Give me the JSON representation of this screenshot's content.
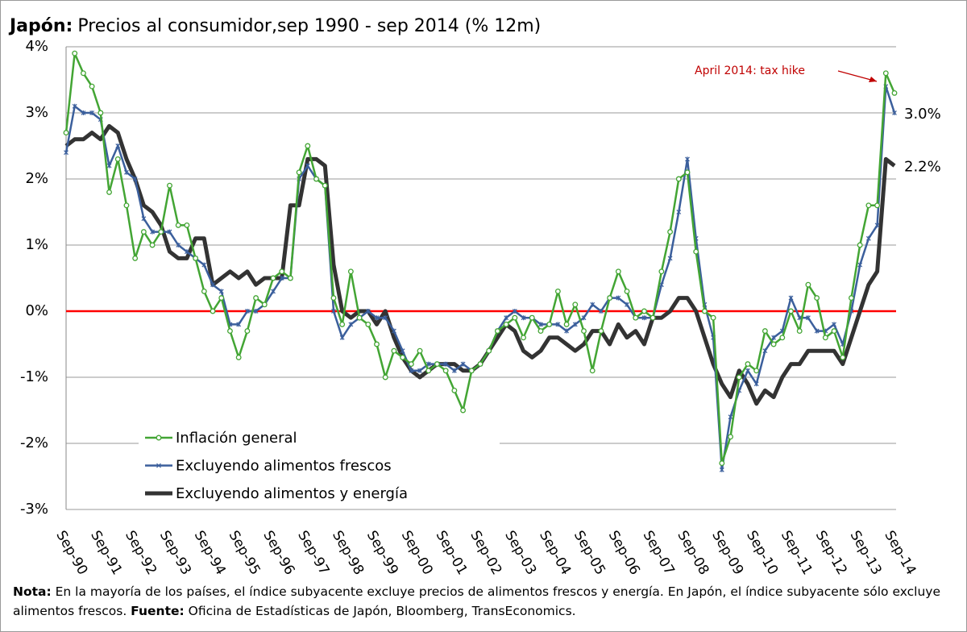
{
  "chart_data": {
    "type": "line",
    "title_prefix": "Japón:",
    "title": "Precios al consumidor,sep 1990 - sep 2014 (% 12m)",
    "categories": [
      "Sep-90",
      null,
      null,
      null,
      "Sep-91",
      null,
      null,
      null,
      "Sep-92",
      null,
      null,
      null,
      "Sep-93",
      null,
      null,
      null,
      "Sep-94",
      null,
      null,
      null,
      "Sep-95",
      null,
      null,
      null,
      "Sep-96",
      null,
      null,
      null,
      "Sep-97",
      null,
      null,
      null,
      "Sep-98",
      null,
      null,
      null,
      "Sep-99",
      null,
      null,
      null,
      "Sep-00",
      null,
      null,
      null,
      "Sep-01",
      null,
      null,
      null,
      "Sep-02",
      null,
      null,
      null,
      "Sep-03",
      null,
      null,
      null,
      "Sep-04",
      null,
      null,
      null,
      "Sep-05",
      null,
      null,
      null,
      "Sep-06",
      null,
      null,
      null,
      "Sep-07",
      null,
      null,
      null,
      "Sep-08",
      null,
      null,
      null,
      "Sep-09",
      null,
      null,
      null,
      "Sep-10",
      null,
      null,
      null,
      "Sep-11",
      null,
      null,
      null,
      "Sep-12",
      null,
      null,
      null,
      "Sep-13",
      null,
      null,
      null,
      "Sep-14"
    ],
    "series": [
      {
        "name": "Inflación general",
        "color": "#43a534",
        "marker": "circle",
        "values": [
          2.7,
          3.9,
          3.6,
          3.4,
          3.0,
          1.8,
          2.3,
          1.6,
          0.8,
          1.2,
          1.0,
          1.2,
          1.9,
          1.3,
          1.3,
          0.8,
          0.3,
          0.0,
          0.2,
          -0.3,
          -0.7,
          -0.3,
          0.2,
          0.1,
          0.5,
          0.6,
          0.5,
          2.1,
          2.5,
          2.0,
          1.9,
          0.2,
          -0.2,
          0.6,
          -0.1,
          -0.2,
          -0.5,
          -1.0,
          -0.6,
          -0.7,
          -0.8,
          -0.6,
          -0.9,
          -0.8,
          -0.9,
          -1.2,
          -1.5,
          -0.9,
          -0.8,
          -0.6,
          -0.3,
          -0.2,
          -0.1,
          -0.4,
          -0.1,
          -0.3,
          -0.2,
          0.3,
          -0.2,
          0.1,
          -0.3,
          -0.9,
          -0.3,
          0.2,
          0.6,
          0.3,
          -0.1,
          0.0,
          -0.1,
          0.6,
          1.2,
          2.0,
          2.1,
          0.9,
          0.0,
          -0.1,
          -2.3,
          -1.9,
          -1.0,
          -0.8,
          -0.9,
          -0.3,
          -0.5,
          -0.4,
          0.0,
          -0.3,
          0.4,
          0.2,
          -0.4,
          -0.3,
          -0.7,
          0.2,
          1.0,
          1.6,
          1.6,
          3.6,
          3.3
        ]
      },
      {
        "name": "Excluyendo alimentos frescos",
        "color": "#3b5f9c",
        "marker": "star",
        "end_label": "3.0%",
        "values": [
          2.4,
          3.1,
          3.0,
          3.0,
          2.9,
          2.2,
          2.5,
          2.1,
          2.0,
          1.4,
          1.2,
          1.2,
          1.2,
          1.0,
          0.9,
          0.8,
          0.7,
          0.4,
          0.3,
          -0.2,
          -0.2,
          0.0,
          0.0,
          0.1,
          0.3,
          0.5,
          0.5,
          2.0,
          2.2,
          2.0,
          1.9,
          0.0,
          -0.4,
          -0.2,
          -0.1,
          0.0,
          -0.1,
          -0.1,
          -0.3,
          -0.6,
          -0.9,
          -0.9,
          -0.8,
          -0.8,
          -0.8,
          -0.9,
          -0.8,
          -0.9,
          -0.8,
          -0.6,
          -0.3,
          -0.1,
          0.0,
          -0.1,
          -0.1,
          -0.2,
          -0.2,
          -0.2,
          -0.3,
          -0.2,
          -0.1,
          0.1,
          0.0,
          0.2,
          0.2,
          0.1,
          -0.1,
          -0.1,
          -0.1,
          0.4,
          0.8,
          1.5,
          2.3,
          1.1,
          0.1,
          -0.4,
          -2.4,
          -1.6,
          -1.2,
          -0.9,
          -1.1,
          -0.6,
          -0.4,
          -0.3,
          0.2,
          -0.1,
          -0.1,
          -0.3,
          -0.3,
          -0.2,
          -0.5,
          0.0,
          0.7,
          1.1,
          1.3,
          3.4,
          3.0
        ]
      },
      {
        "name": "Excluyendo alimentos y energía",
        "color": "#333333",
        "marker": "none",
        "end_label": "2.2%",
        "values": [
          2.5,
          2.6,
          2.6,
          2.7,
          2.6,
          2.8,
          2.7,
          2.3,
          2.0,
          1.6,
          1.5,
          1.3,
          0.9,
          0.8,
          0.8,
          1.1,
          1.1,
          0.4,
          0.5,
          0.6,
          0.5,
          0.6,
          0.4,
          0.5,
          0.5,
          0.5,
          1.6,
          1.6,
          2.3,
          2.3,
          2.2,
          0.7,
          0.0,
          -0.1,
          0.0,
          0.0,
          -0.2,
          0.0,
          -0.4,
          -0.7,
          -0.9,
          -1.0,
          -0.9,
          -0.8,
          -0.8,
          -0.8,
          -0.9,
          -0.9,
          -0.8,
          -0.6,
          -0.4,
          -0.2,
          -0.3,
          -0.6,
          -0.7,
          -0.6,
          -0.4,
          -0.4,
          -0.5,
          -0.6,
          -0.5,
          -0.3,
          -0.3,
          -0.5,
          -0.2,
          -0.4,
          -0.3,
          -0.5,
          -0.1,
          -0.1,
          0.0,
          0.2,
          0.2,
          0.0,
          -0.4,
          -0.8,
          -1.1,
          -1.3,
          -0.9,
          -1.1,
          -1.4,
          -1.2,
          -1.3,
          -1.0,
          -0.8,
          -0.8,
          -0.6,
          -0.6,
          -0.6,
          -0.6,
          -0.8,
          -0.4,
          0.0,
          0.4,
          0.6,
          2.3,
          2.2
        ]
      }
    ],
    "ylim": [
      -3,
      4
    ],
    "yticks": [
      {
        "value": -3,
        "label": "-3%"
      },
      {
        "value": -2,
        "label": "-2%"
      },
      {
        "value": -1,
        "label": "-1%"
      },
      {
        "value": 0,
        "label": "0%"
      },
      {
        "value": 1,
        "label": "1%"
      },
      {
        "value": 2,
        "label": "2%"
      },
      {
        "value": 3,
        "label": "3%"
      },
      {
        "value": 4,
        "label": "4%"
      }
    ],
    "grid": true,
    "zero_line": {
      "value": 0,
      "color": "#ff0000"
    },
    "legend": "lower left",
    "annotation": "April 2014: tax hike"
  },
  "note": {
    "label": "Nota:",
    "text": " En la mayoría de los países, el índice subyacente excluye precios de alimentos frescos y energía. En Japón, el índice subyacente sólo excluye alimentos frescos. ",
    "source_label": "Fuente:",
    "source": " Oficina de Estadísticas de Japón, Bloomberg, TransEconomics."
  }
}
